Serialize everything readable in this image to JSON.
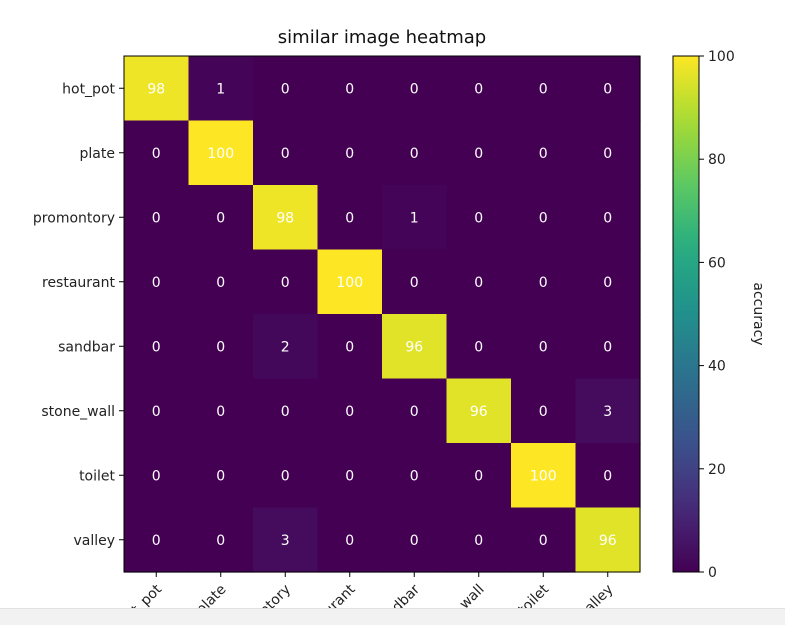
{
  "chart_data": {
    "type": "heatmap",
    "title": "similar image heatmap",
    "rows": [
      "hot_pot",
      "plate",
      "promontory",
      "restaurant",
      "sandbar",
      "stone_wall",
      "toilet",
      "valley"
    ],
    "cols": [
      "hot_pot",
      "plate",
      "promontory",
      "restaurant",
      "sandbar",
      "stone_wall",
      "toilet",
      "valley"
    ],
    "values": [
      [
        98,
        1,
        0,
        0,
        0,
        0,
        0,
        0
      ],
      [
        0,
        100,
        0,
        0,
        0,
        0,
        0,
        0
      ],
      [
        0,
        0,
        98,
        0,
        1,
        0,
        0,
        0
      ],
      [
        0,
        0,
        0,
        100,
        0,
        0,
        0,
        0
      ],
      [
        0,
        0,
        2,
        0,
        96,
        0,
        0,
        0
      ],
      [
        0,
        0,
        0,
        0,
        0,
        96,
        0,
        3
      ],
      [
        0,
        0,
        0,
        0,
        0,
        0,
        100,
        0
      ],
      [
        0,
        0,
        3,
        0,
        0,
        0,
        0,
        96
      ]
    ],
    "colorbar": {
      "label": "accuracy",
      "min": 0,
      "max": 100,
      "ticks": [
        0,
        20,
        40,
        60,
        80,
        100
      ]
    },
    "colormap": "viridis"
  }
}
